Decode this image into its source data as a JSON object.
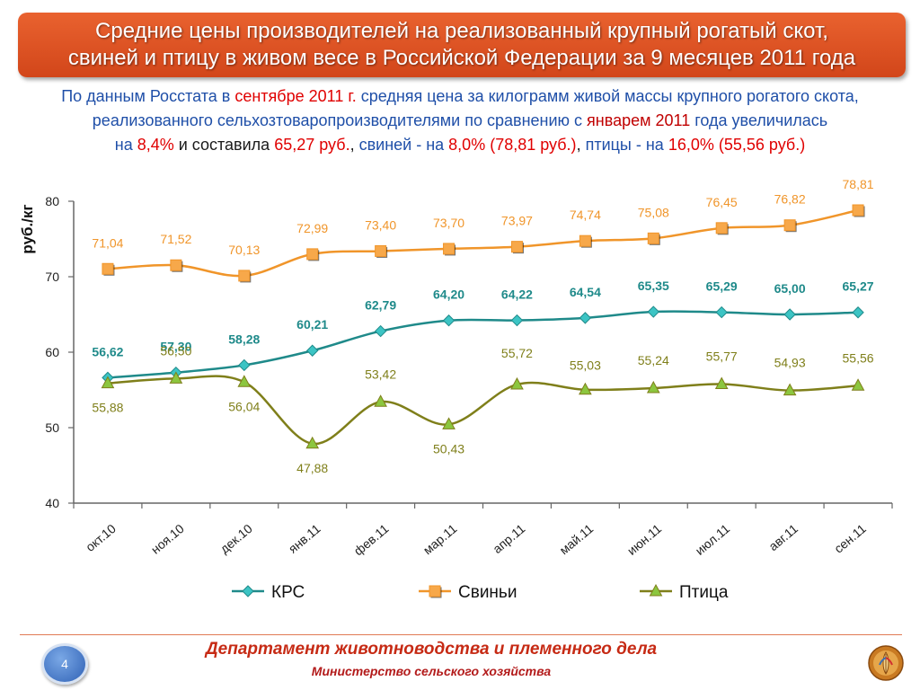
{
  "header": {
    "title_line1": "Средние цены производителей на реализованный крупный рогатый скот,",
    "title_line2": "свиней и птицу в живом весе в Российской Федерации за 9 месяцев 2011 года"
  },
  "summary": {
    "p1": "По данным Росстата в ",
    "p1_hl": "сентябре 2011 г.",
    "p1_rest": " средняя цена за килограмм живой массы крупного рогатого скота,",
    "p2": "реализованного сельхозтоваропроизводителями по сравнению с ",
    "p2_hl": "январем",
    "p2_year": " 2011",
    "p2_rest": " года увеличилась",
    "p3_a": "на ",
    "p3_b": "8,4%",
    "p3_c": " и составила ",
    "p3_d": "65,27 руб.",
    "p3_e": ",",
    "p3_f": " свиней - на ",
    "p3_g": "8,0% (78,81 руб.)",
    "p3_h": ",",
    "p3_i": " птицы - на ",
    "p3_j": "16,0% (55,56 руб.)"
  },
  "footer": {
    "page_number": "4",
    "department": "Департамент животноводства и племенного дела",
    "ministry": "Министерство сельского хозяйства"
  },
  "chart_data": {
    "type": "line",
    "title": "",
    "xlabel": "",
    "ylabel": "руб./кг",
    "ylim": [
      40,
      80
    ],
    "yticks": [
      40,
      50,
      60,
      70,
      80
    ],
    "grid": false,
    "legend_position": "bottom",
    "categories": [
      "окт.10",
      "ноя.10",
      "дек.10",
      "янв.11",
      "фев.11",
      "мар.11",
      "апр.11",
      "май.11",
      "июн.11",
      "июл.11",
      "авг.11",
      "сен.11"
    ],
    "series": [
      {
        "name": "КРС",
        "color": "#1f8a8a",
        "marker": "diamond",
        "marker_color": "#3cc4c4",
        "values": [
          56.62,
          57.3,
          58.28,
          60.21,
          62.79,
          64.2,
          64.22,
          64.54,
          65.35,
          65.29,
          65.0,
          65.27
        ],
        "labels": [
          "56,62",
          "57,30",
          "58,28",
          "60,21",
          "62,79",
          "64,20",
          "64,22",
          "64,54",
          "65,35",
          "65,29",
          "65,00",
          "65,27"
        ]
      },
      {
        "name": "Свиньи",
        "color": "#f0952a",
        "marker": "square",
        "marker_color": "#f7a84a",
        "values": [
          71.04,
          71.52,
          70.13,
          72.99,
          73.4,
          73.7,
          73.97,
          74.74,
          75.08,
          76.45,
          76.82,
          78.81
        ],
        "labels": [
          "71,04",
          "71,52",
          "70,13",
          "72,99",
          "73,40",
          "73,70",
          "73,97",
          "74,74",
          "75,08",
          "76,45",
          "76,82",
          "78,81"
        ]
      },
      {
        "name": "Птица",
        "color": "#7f7f1a",
        "marker": "triangle",
        "marker_color": "#8cc63f",
        "values": [
          55.88,
          56.5,
          56.04,
          47.88,
          53.42,
          50.43,
          55.72,
          55.03,
          55.24,
          55.77,
          54.93,
          55.56
        ],
        "labels": [
          "55,88",
          "56,50",
          "56,04",
          "47,88",
          "53,42",
          "50,43",
          "55,72",
          "55,03",
          "55,24",
          "55,77",
          "54,93",
          "55,56"
        ]
      }
    ]
  }
}
